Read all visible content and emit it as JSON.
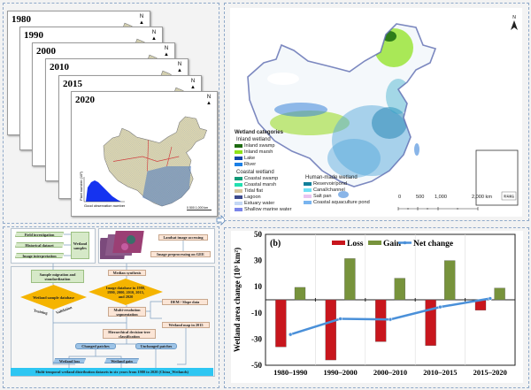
{
  "stack": {
    "years": [
      "1980",
      "1990",
      "2000",
      "2010",
      "2015",
      "2020"
    ],
    "north": "N",
    "hist_ylabel": "Pixel number (10³)",
    "hist_xlabel": "Good observation number",
    "hist_yticks": [
      "0",
      "100",
      "200",
      "300",
      "400"
    ],
    "hist_xticks": [
      "0",
      "20",
      "40",
      "60",
      "80",
      "100"
    ],
    "scale": [
      "0",
      "500",
      "1,000 km"
    ]
  },
  "flow": {
    "field": "Field investigation",
    "historical": "Historical dataset",
    "interp": "Image interpretation",
    "samples": "Wetland samples",
    "landsat": "Landsat image accessing",
    "preproc": "Image preprocessing on GEE",
    "migration": "Sample migration and standardization",
    "median": "Median synthesis",
    "imgdb": "Image database in 1980, 1990, 2000, 2010, 2015, and 2020",
    "sampledb": "Wetland sample database",
    "training": "Training",
    "validation": "Validation",
    "dem": "DEM / Slope data",
    "seg": "Multi-resolution segmentation",
    "map2015": "Wetland map in 2015",
    "tree": "Hierarchical decision-tree classification",
    "changed": "Changed patches",
    "unchanged": "Unchanged patches",
    "loss": "Wetland loss",
    "gain": "Wetland gain",
    "output": "Multi-temporal wetland distribution datasets in six years from 1980 to 2020 (China_Wetlands)"
  },
  "map": {
    "north": "N",
    "legend_title": "Wetland categories",
    "groups": [
      {
        "title": "Inland wetland",
        "items": [
          {
            "label": "Inland swamp",
            "color": "#1e6b12"
          },
          {
            "label": "Inland marsh",
            "color": "#8fe31a"
          },
          {
            "label": "Lake",
            "color": "#1245a8"
          },
          {
            "label": "River",
            "color": "#1a7fe6"
          }
        ]
      },
      {
        "title": "Coastal wetland",
        "items": [
          {
            "label": "Coastal swamp",
            "color": "#119a78"
          },
          {
            "label": "Coastal marsh",
            "color": "#22e0b0"
          },
          {
            "label": "Tidal flat",
            "color": "#d6c39a"
          },
          {
            "label": "Lagoon",
            "color": "#3c4a8c"
          },
          {
            "label": "Estuary water",
            "color": "#c4d8f5"
          },
          {
            "label": "Shallow marine water",
            "color": "#7b85e8"
          }
        ]
      },
      {
        "title": "Human-made wetland",
        "items": [
          {
            "label": "Reservoir/pond",
            "color": "#117f9a"
          },
          {
            "label": "Canal/channel",
            "color": "#6fe0f5"
          },
          {
            "label": "Salt pan",
            "color": "#e8c4f0"
          },
          {
            "label": "Coastal aquaculture pond",
            "color": "#79b4ef"
          }
        ]
      }
    ],
    "scale": [
      "0",
      "500",
      "1,000",
      "2,000 km"
    ],
    "inset_label": "南海诸岛"
  },
  "chart_data": {
    "type": "bar",
    "panel_label": "(b)",
    "categories": [
      "1980–1990",
      "1990–2000",
      "2000–2010",
      "2010–2015",
      "2015–2020"
    ],
    "series": [
      {
        "name": "Loss",
        "type": "bar",
        "color": "#c8161d",
        "values": [
          -36,
          -46,
          -32,
          -35,
          -8
        ]
      },
      {
        "name": "Gain",
        "type": "bar",
        "color": "#77933c",
        "values": [
          9.5,
          31.5,
          16.5,
          30,
          9
        ]
      },
      {
        "name": "Net change",
        "type": "line",
        "color": "#4a90d9",
        "values": [
          -26.5,
          -14.5,
          -15,
          -5.5,
          1
        ]
      }
    ],
    "ylabel": "Wetland area change (10³ km²)",
    "ylim": [
      -50,
      50
    ],
    "yticks": [
      "50",
      "30",
      "10",
      "-10",
      "-30",
      "-50"
    ],
    "legend": "top-center",
    "grid": "vertical category dividers"
  }
}
